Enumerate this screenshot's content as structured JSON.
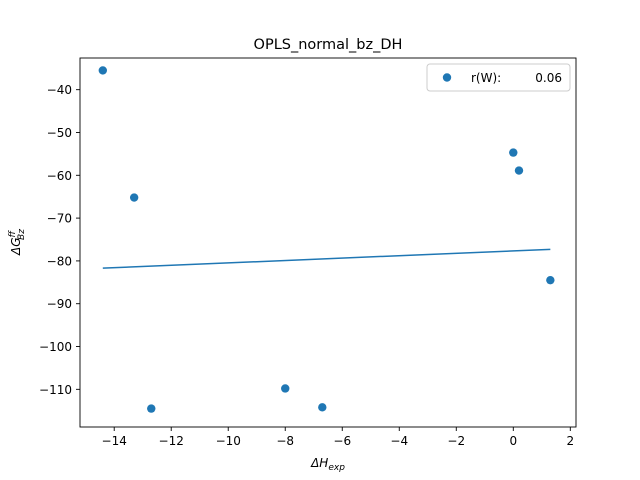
{
  "chart_data": {
    "type": "scatter",
    "title": "OPLS_normal_bz_DH",
    "xlabel": "ΔH_exp",
    "xlabel_parts": {
      "symbol": "ΔH",
      "sub": "exp"
    },
    "ylabel": "ΔG^ff_Bz",
    "ylabel_parts": {
      "symbol": "ΔG",
      "sup": "ff",
      "sub": "Bz"
    },
    "xlim": [
      -15.2,
      2.2
    ],
    "ylim": [
      -118.8,
      -32.6
    ],
    "xticks": [
      -14,
      -12,
      -10,
      -8,
      -6,
      -4,
      -2,
      0,
      2
    ],
    "xtick_labels": [
      "−14",
      "−12",
      "−10",
      "−8",
      "−6",
      "−4",
      "−2",
      "0",
      "2"
    ],
    "yticks": [
      -110,
      -100,
      -90,
      -80,
      -70,
      -60,
      -50,
      -40
    ],
    "ytick_labels": [
      "−110",
      "−100",
      "−90",
      "−80",
      "−70",
      "−60",
      "−50",
      "−40"
    ],
    "grid": false,
    "series": [
      {
        "name": "r(W):      0.06",
        "x": [
          -14.4,
          -13.3,
          -12.7,
          -8.0,
          -6.7,
          0.0,
          0.2,
          1.3
        ],
        "y": [
          -35.5,
          -65.2,
          -114.5,
          -109.8,
          -114.2,
          -54.7,
          -58.9,
          -84.5
        ],
        "color": "#1f77b4"
      }
    ],
    "fit_line": {
      "x": [
        -14.4,
        1.3
      ],
      "y": [
        -81.7,
        -77.3
      ],
      "color": "#1f77b4"
    },
    "legend": {
      "position": "top-right",
      "entries": [
        {
          "label_name": "r(W):",
          "label_value": "0.06"
        }
      ]
    }
  }
}
